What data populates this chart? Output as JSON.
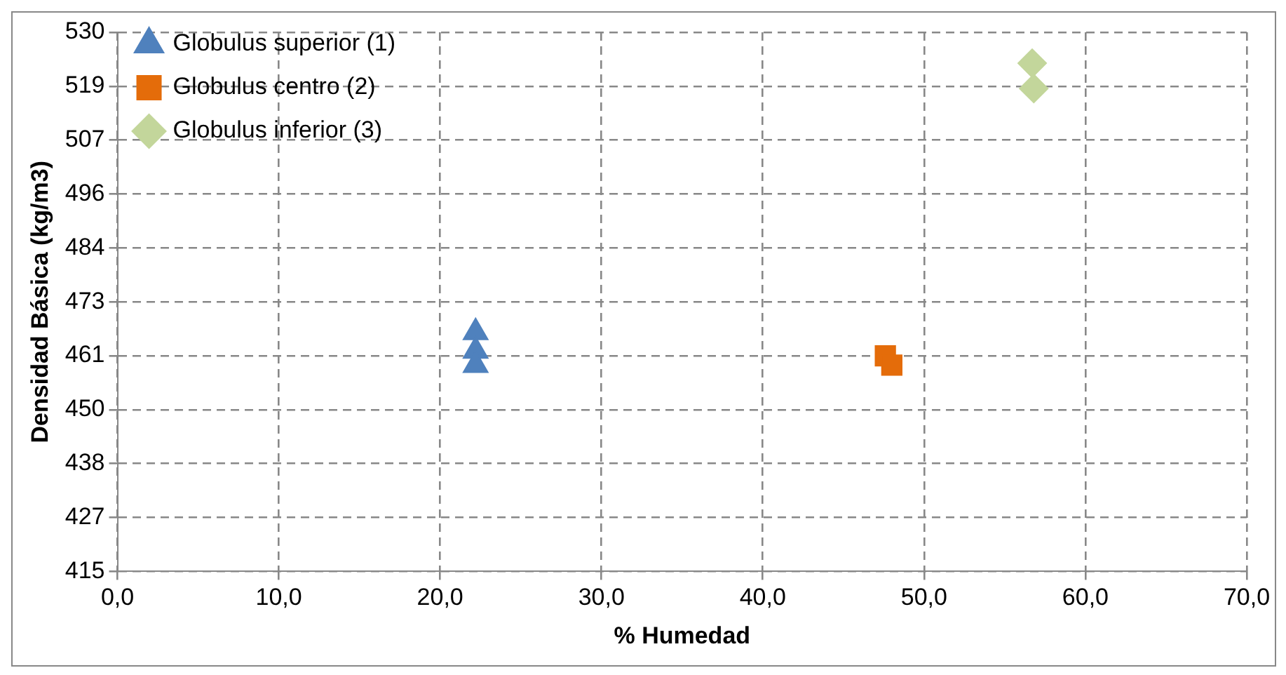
{
  "chart_data": {
    "type": "scatter",
    "xlabel": "% Humedad",
    "ylabel": "Densidad Básica (kg/m3)",
    "xlim": [
      0,
      70
    ],
    "xticks": [
      {
        "value": 0,
        "label": "0,0"
      },
      {
        "value": 10,
        "label": "10,0"
      },
      {
        "value": 20,
        "label": "20,0"
      },
      {
        "value": 30,
        "label": "30,0"
      },
      {
        "value": 40,
        "label": "40,0"
      },
      {
        "value": 50,
        "label": "50,0"
      },
      {
        "value": 60,
        "label": "60,0"
      },
      {
        "value": 70,
        "label": "70,0"
      }
    ],
    "ylim": [
      415,
      530
    ],
    "yticks": [
      {
        "value": 415,
        "label": "415"
      },
      {
        "value": 426.5,
        "label": "427"
      },
      {
        "value": 438,
        "label": "438"
      },
      {
        "value": 449.5,
        "label": "450"
      },
      {
        "value": 461,
        "label": "461"
      },
      {
        "value": 472.5,
        "label": "473"
      },
      {
        "value": 484,
        "label": "484"
      },
      {
        "value": 495.5,
        "label": "496"
      },
      {
        "value": 507,
        "label": "507"
      },
      {
        "value": 518.5,
        "label": "519"
      },
      {
        "value": 530,
        "label": "530"
      }
    ],
    "grid": true,
    "legend": "top left",
    "series": [
      {
        "name": "Globulus superior (1)",
        "color": "#4f81bd",
        "marker": "triangle",
        "x": [
          22.2,
          22.2,
          22.2
        ],
        "values": [
          466,
          462,
          459
        ]
      },
      {
        "name": "Globulus centro (2)",
        "color": "#e46c0a",
        "marker": "square",
        "x": [
          47.6,
          48.0
        ],
        "values": [
          461,
          459
        ]
      },
      {
        "name": "Globulus inferior (3)",
        "color": "#c3d69b",
        "marker": "diamond",
        "x": [
          56.7,
          56.8
        ],
        "values": [
          523.4,
          518
        ]
      }
    ]
  }
}
